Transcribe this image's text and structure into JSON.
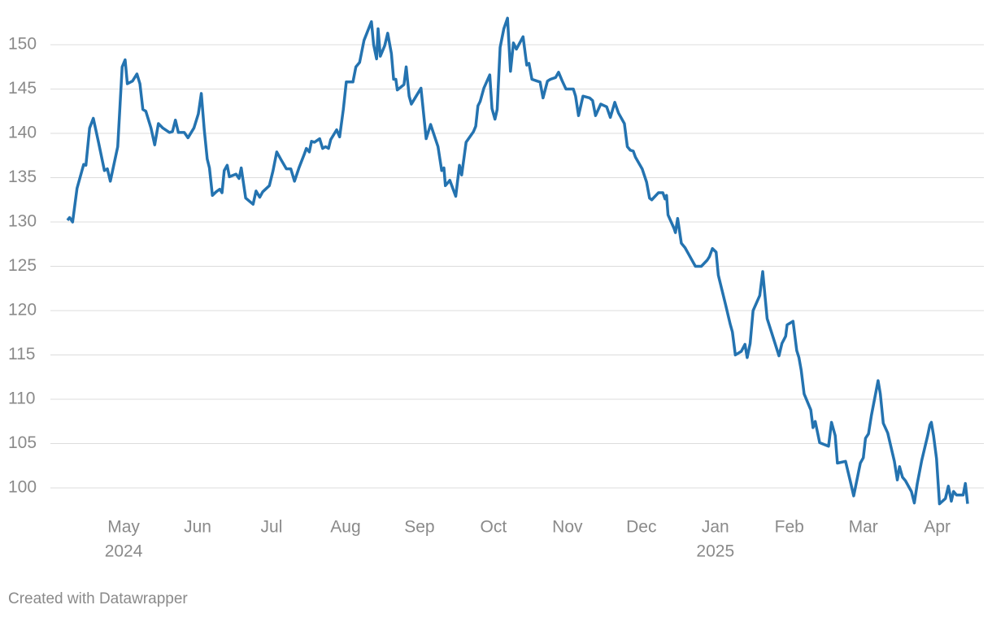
{
  "chart_data": {
    "type": "line",
    "x": [
      4.24,
      4.27,
      4.31,
      4.37,
      4.46,
      4.49,
      4.54,
      4.59,
      4.66,
      4.74,
      4.78,
      4.82,
      4.92,
      4.98,
      5.02,
      5.05,
      5.12,
      5.18,
      5.22,
      5.26,
      5.3,
      5.37,
      5.42,
      5.47,
      5.53,
      5.62,
      5.66,
      5.7,
      5.74,
      5.82,
      5.87,
      5.95,
      6.01,
      6.05,
      6.09,
      6.13,
      6.16,
      6.2,
      6.25,
      6.3,
      6.33,
      6.36,
      6.4,
      6.43,
      6.52,
      6.56,
      6.59,
      6.65,
      6.75,
      6.79,
      6.84,
      6.88,
      6.97,
      7.02,
      7.07,
      7.13,
      7.2,
      7.26,
      7.31,
      7.37,
      7.44,
      7.47,
      7.51,
      7.54,
      7.58,
      7.65,
      7.69,
      7.73,
      7.77,
      7.8,
      7.88,
      7.92,
      7.97,
      8.01,
      8.1,
      8.14,
      8.19,
      8.25,
      8.35,
      8.38,
      8.42,
      8.44,
      8.47,
      8.53,
      8.57,
      8.62,
      8.65,
      8.68,
      8.7,
      8.79,
      8.82,
      8.86,
      8.89,
      9.02,
      9.09,
      9.15,
      9.25,
      9.3,
      9.33,
      9.35,
      9.41,
      9.49,
      9.54,
      9.57,
      9.63,
      9.73,
      9.76,
      9.79,
      9.82,
      9.87,
      9.95,
      9.98,
      10.02,
      10.05,
      10.09,
      10.14,
      10.19,
      10.23,
      10.27,
      10.31,
      10.4,
      10.45,
      10.48,
      10.52,
      10.59,
      10.63,
      10.67,
      10.73,
      10.77,
      10.84,
      10.88,
      10.93,
      10.98,
      11.08,
      11.11,
      11.15,
      11.21,
      11.3,
      11.34,
      11.38,
      11.45,
      11.53,
      11.58,
      11.64,
      11.69,
      11.77,
      11.81,
      11.85,
      11.89,
      11.92,
      12.01,
      12.07,
      12.11,
      12.14,
      12.23,
      12.29,
      12.32,
      12.34,
      12.36,
      12.44,
      12.46,
      12.49,
      12.54,
      12.59,
      12.65,
      12.73,
      12.81,
      12.89,
      12.92,
      12.96,
      13.01,
      13.04,
      13.14,
      13.2,
      13.23,
      13.27,
      13.35,
      13.4,
      13.43,
      13.47,
      13.51,
      13.6,
      13.64,
      13.7,
      13.86,
      13.9,
      13.95,
      13.97,
      14.05,
      14.1,
      14.13,
      14.16,
      14.2,
      14.29,
      14.32,
      14.35,
      14.41,
      14.53,
      14.57,
      14.62,
      14.65,
      14.76,
      14.82,
      14.87,
      14.96,
      15.0,
      15.03,
      15.07,
      15.11,
      15.2,
      15.23,
      15.27,
      15.33,
      15.42,
      15.46,
      15.49,
      15.53,
      15.57,
      15.65,
      15.69,
      15.73,
      15.79,
      15.87,
      15.9,
      15.92,
      15.95,
      15.99,
      16.03,
      16.11,
      16.15,
      16.19,
      16.22,
      16.26,
      16.35,
      16.38,
      16.41
    ],
    "values": [
      130.2,
      130.5,
      130.0,
      133.8,
      136.5,
      136.4,
      140.6,
      141.7,
      139.0,
      135.8,
      136.0,
      134.6,
      138.5,
      147.5,
      148.3,
      145.6,
      145.9,
      146.7,
      145.6,
      142.7,
      142.5,
      140.6,
      138.7,
      141.1,
      140.6,
      140.1,
      140.2,
      141.5,
      140.1,
      140.1,
      139.5,
      140.6,
      142.2,
      144.5,
      140.4,
      137.1,
      136.1,
      133.0,
      133.4,
      133.7,
      133.3,
      135.8,
      136.4,
      135.1,
      135.4,
      134.9,
      136.1,
      132.7,
      132.0,
      133.5,
      132.8,
      133.4,
      134.1,
      135.8,
      137.9,
      137.0,
      136.0,
      136.0,
      134.6,
      136.1,
      137.6,
      138.3,
      137.9,
      139.1,
      139.0,
      139.4,
      138.3,
      138.5,
      138.3,
      139.3,
      140.4,
      139.6,
      142.7,
      145.8,
      145.8,
      147.5,
      148.0,
      150.5,
      152.6,
      150.0,
      148.4,
      151.8,
      148.7,
      149.9,
      151.3,
      149.0,
      146.1,
      146.1,
      144.9,
      145.5,
      147.5,
      144.2,
      143.3,
      145.1,
      139.4,
      141.0,
      138.5,
      135.8,
      136.1,
      134.1,
      134.7,
      132.9,
      136.4,
      135.3,
      139.0,
      140.2,
      140.8,
      143.1,
      143.6,
      145.1,
      146.6,
      142.8,
      141.6,
      142.7,
      149.7,
      151.8,
      153.0,
      147.0,
      150.2,
      149.5,
      150.9,
      147.7,
      147.9,
      146.1,
      145.9,
      145.8,
      144.0,
      145.9,
      146.1,
      146.3,
      146.9,
      145.9,
      145.0,
      145.0,
      144.2,
      142.0,
      144.2,
      144.0,
      143.7,
      142.0,
      143.3,
      143.0,
      141.8,
      143.5,
      142.3,
      141.1,
      138.5,
      138.1,
      138.0,
      137.3,
      136.0,
      134.5,
      132.7,
      132.5,
      133.3,
      133.3,
      132.6,
      133.0,
      130.8,
      129.3,
      128.8,
      130.4,
      127.6,
      127.1,
      126.2,
      125.0,
      125.0,
      125.7,
      126.1,
      127.0,
      126.6,
      124.0,
      120.6,
      118.5,
      117.6,
      115.0,
      115.4,
      116.2,
      114.7,
      116.3,
      120.0,
      121.7,
      124.4,
      119.1,
      114.9,
      116.3,
      117.1,
      118.4,
      118.8,
      115.5,
      114.7,
      113.3,
      110.6,
      108.8,
      106.8,
      107.5,
      105.1,
      104.7,
      107.4,
      105.9,
      102.8,
      103.0,
      100.9,
      99.1,
      102.8,
      103.4,
      105.6,
      106.1,
      108.2,
      112.1,
      110.6,
      107.3,
      106.2,
      103.0,
      100.9,
      102.4,
      101.2,
      100.8,
      99.6,
      98.3,
      100.5,
      103.1,
      105.9,
      107.1,
      107.4,
      105.9,
      103.3,
      98.2,
      98.8,
      100.2,
      98.5,
      99.6,
      99.2,
      99.2,
      100.5,
      98.2
    ],
    "color": "#2473b0",
    "xlim": [
      4.01,
      16.63
    ],
    "xticks": [
      {
        "value": 5,
        "label": "May"
      },
      {
        "value": 6,
        "label": "Jun"
      },
      {
        "value": 7,
        "label": "Jul"
      },
      {
        "value": 8,
        "label": "Aug"
      },
      {
        "value": 9,
        "label": "Sep"
      },
      {
        "value": 10,
        "label": "Oct"
      },
      {
        "value": 11,
        "label": "Nov"
      },
      {
        "value": 12,
        "label": "Dec"
      },
      {
        "value": 13,
        "label": "Jan"
      },
      {
        "value": 14,
        "label": "Feb"
      },
      {
        "value": 15,
        "label": "Mar"
      },
      {
        "value": 16,
        "label": "Apr"
      }
    ],
    "xtick_years": [
      {
        "value": 5,
        "label": "2024"
      },
      {
        "value": 13,
        "label": "2025"
      }
    ],
    "ylim": [
      97,
      155
    ],
    "yticks": [
      100,
      105,
      110,
      115,
      120,
      125,
      130,
      135,
      140,
      145,
      150
    ],
    "grid": true,
    "footer": "Created with Datawrapper"
  }
}
